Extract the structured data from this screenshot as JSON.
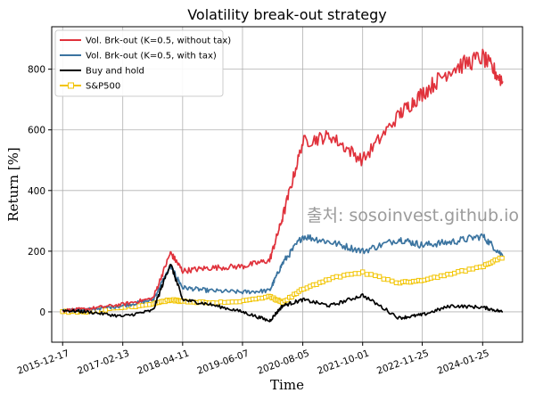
{
  "chart_data": {
    "type": "line",
    "title": "Volatility break-out strategy",
    "xlabel": "Time",
    "ylabel": "Return [%]",
    "watermark": "출처: sosoinvest.github.io",
    "x_ticks": [
      "2015-12-17",
      "2017-02-13",
      "2018-04-11",
      "2019-06-07",
      "2020-08-05",
      "2021-10-01",
      "2022-11-25",
      "2024-01-25"
    ],
    "y_ticks": [
      0,
      200,
      400,
      600,
      800
    ],
    "ylim": [
      -100,
      940
    ],
    "grid": true,
    "legend_position": "top-left",
    "x": [
      "2015-12-17",
      "2016-06",
      "2017-02-13",
      "2017-09",
      "2018-01",
      "2018-04-11",
      "2018-10",
      "2019-06-07",
      "2019-12",
      "2020-03",
      "2020-08-05",
      "2021-02",
      "2021-10-01",
      "2022-06",
      "2022-11-25",
      "2023-06",
      "2024-01-25",
      "2024-06"
    ],
    "series": [
      {
        "name": "Vol. Brk-out (K=0.5, without tax)",
        "color": "#e0323c",
        "marker": "none",
        "values": [
          5,
          10,
          25,
          45,
          195,
          135,
          145,
          150,
          170,
          310,
          560,
          580,
          500,
          650,
          720,
          800,
          840,
          760
        ]
      },
      {
        "name": "Vol. Brk-out (K=0.5, with tax)",
        "color": "#3b74a0",
        "marker": "none",
        "values": [
          5,
          8,
          20,
          40,
          150,
          80,
          70,
          65,
          70,
          160,
          250,
          230,
          200,
          240,
          220,
          230,
          250,
          185
        ]
      },
      {
        "name": "Buy and hold",
        "color": "#000000",
        "marker": "none",
        "values": [
          5,
          0,
          -15,
          5,
          160,
          40,
          25,
          0,
          -30,
          20,
          40,
          20,
          55,
          -20,
          -10,
          20,
          15,
          0
        ]
      },
      {
        "name": "S&P500",
        "color": "#f2c400",
        "marker": "square",
        "values": [
          0,
          0,
          15,
          25,
          40,
          35,
          30,
          35,
          50,
          30,
          75,
          110,
          130,
          95,
          105,
          125,
          150,
          180
        ]
      }
    ]
  }
}
